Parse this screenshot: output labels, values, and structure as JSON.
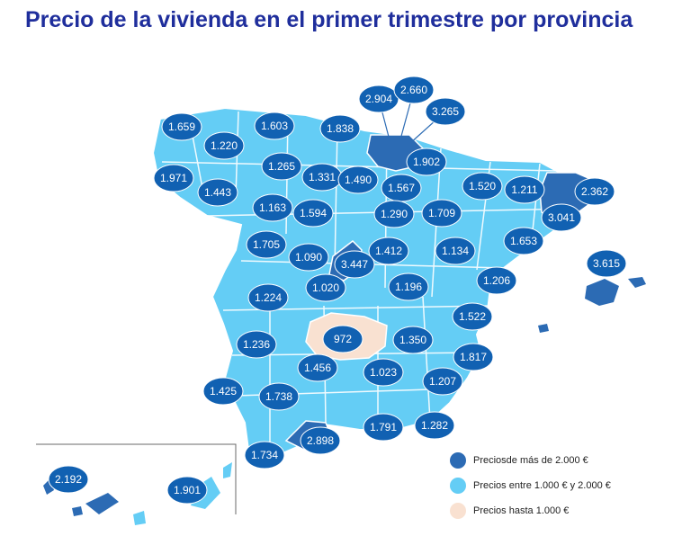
{
  "title": "Precio de la vivienda en el primer trimestre por provincia",
  "colors": {
    "high": "#2c6bb4",
    "mid": "#64cdf5",
    "low": "#f9e1d1",
    "badge": "#1161b2",
    "border": "#ffffff",
    "title": "#1f2e9c"
  },
  "legend": [
    {
      "category": "high",
      "label": "Preciosde más de 2.000 €"
    },
    {
      "category": "mid",
      "label": "Precios entre 1.000 € y 2.000 €"
    },
    {
      "category": "low",
      "label": "Precios hasta 1.000 €"
    }
  ],
  "price_labels": [
    "1.659",
    "1.603",
    "1.838",
    "2.904",
    "2.660",
    "3.265",
    "1.220",
    "1.902",
    "1.971",
    "1.265",
    "1.331",
    "1.490",
    "1.567",
    "1.520",
    "1.211",
    "2.362",
    "1.443",
    "1.163",
    "1.594",
    "1.290",
    "1.709",
    "3.041",
    "1.705",
    "1.090",
    "1.412",
    "1.134",
    "1.653",
    "3.615",
    "3.447",
    "1.224",
    "1.020",
    "1.196",
    "1.206",
    "1.522",
    "972",
    "1.350",
    "1.236",
    "1.817",
    "1.456",
    "1.023",
    "1.425",
    "1.738",
    "1.207",
    "2.898",
    "1.791",
    "1.282",
    "1.734",
    "2.192",
    "1.901"
  ]
}
